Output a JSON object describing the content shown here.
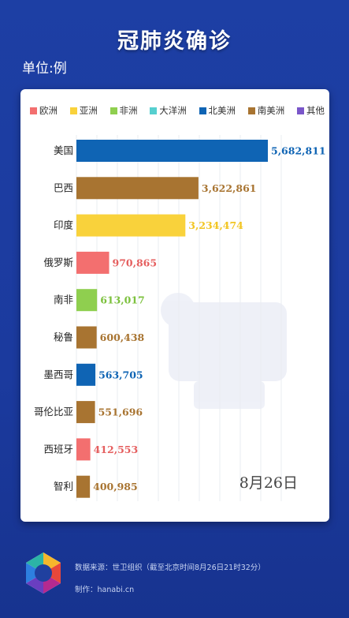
{
  "title": "冠肺炎确诊",
  "unit": "单位:例",
  "legend": [
    {
      "label": "欧洲",
      "color": "#f36f6f"
    },
    {
      "label": "亚洲",
      "color": "#f9d23b"
    },
    {
      "label": "非洲",
      "color": "#8fcf4f"
    },
    {
      "label": "大洋洲",
      "color": "#56cfcf"
    },
    {
      "label": "北美洲",
      "color": "#0f64b4"
    },
    {
      "label": "南美洲",
      "color": "#a87431"
    },
    {
      "label": "其他",
      "color": "#7a56c9"
    }
  ],
  "date": "8月26日",
  "footer": {
    "source": "数据来源：世卫组织（截至北京时间8月26日21时32分）",
    "credit": "制作：hanabi.cn"
  },
  "chart_data": {
    "type": "bar",
    "orientation": "horizontal",
    "categories": [
      "美国",
      "巴西",
      "印度",
      "俄罗斯",
      "南非",
      "秘鲁",
      "墨西哥",
      "哥伦比亚",
      "西班牙",
      "智利"
    ],
    "values": [
      5682811,
      3622861,
      3234474,
      970865,
      613017,
      600438,
      563705,
      551696,
      412553,
      400985
    ],
    "value_labels": [
      "5,682,811",
      "3,622,861",
      "3,234,474",
      "970,865",
      "613,017",
      "600,438",
      "563,705",
      "551,696",
      "412,553",
      "400,985"
    ],
    "regions": [
      "北美洲",
      "南美洲",
      "亚洲",
      "欧洲",
      "非洲",
      "南美洲",
      "北美洲",
      "南美洲",
      "欧洲",
      "南美洲"
    ],
    "colors": [
      "#0f64b4",
      "#a87431",
      "#f9d23b",
      "#f36f6f",
      "#8fcf4f",
      "#a87431",
      "#0f64b4",
      "#a87431",
      "#f36f6f",
      "#a87431"
    ],
    "label_colors": [
      "#0f64b4",
      "#a87431",
      "#f2c522",
      "#e55f5f",
      "#7cc13d",
      "#a87431",
      "#0f64b4",
      "#a87431",
      "#e55f5f",
      "#a87431"
    ],
    "xlim": [
      0,
      5682811
    ],
    "grid": true,
    "legend_position": "top"
  }
}
